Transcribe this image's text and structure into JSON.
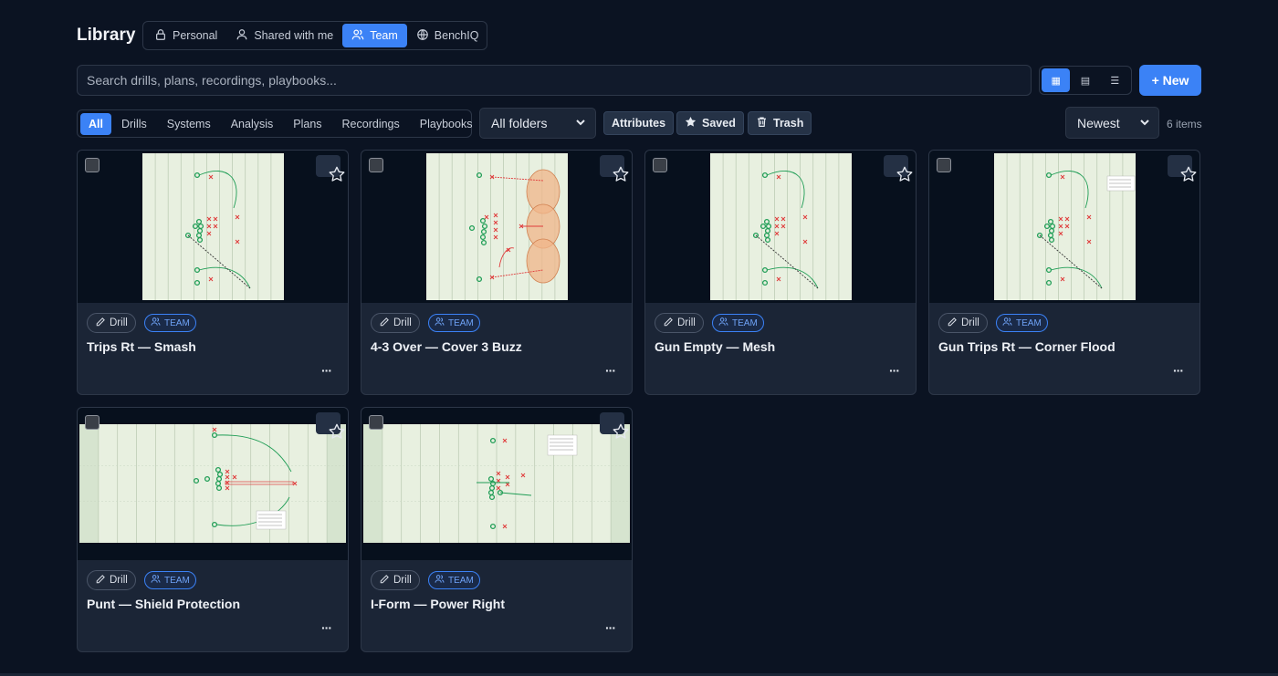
{
  "header": {
    "title": "Library",
    "scope_tabs": [
      {
        "label": "Personal",
        "icon": "lock-icon"
      },
      {
        "label": "Shared with me",
        "icon": "user-icon"
      },
      {
        "label": "Team",
        "icon": "users-icon"
      },
      {
        "label": "BenchIQ",
        "icon": "globe-icon"
      }
    ],
    "active_scope": "Team"
  },
  "search": {
    "placeholder": "Search drills, plans, recordings, playbooks...",
    "value": ""
  },
  "view_modes": [
    {
      "name": "grid",
      "glyph": "▦"
    },
    {
      "name": "compact",
      "glyph": "▤"
    },
    {
      "name": "list",
      "glyph": "☰"
    }
  ],
  "new_button": {
    "label": "+ New"
  },
  "type_tabs": [
    "All",
    "Drills",
    "Systems",
    "Analysis",
    "Plans",
    "Recordings",
    "Playbooks"
  ],
  "active_type": "All",
  "folder_filter": {
    "value": "All folders"
  },
  "filter_buttons": {
    "attributes": "Attributes",
    "saved": "Saved",
    "trash": "Trash"
  },
  "sort": {
    "value": "Newest"
  },
  "item_count": "6 items",
  "cards": [
    {
      "title": "Trips Rt — Smash",
      "type": "Drill",
      "scope": "TEAM"
    },
    {
      "title": "4-3 Over — Cover 3 Buzz",
      "type": "Drill",
      "scope": "TEAM"
    },
    {
      "title": "Gun Empty — Mesh",
      "type": "Drill",
      "scope": "TEAM"
    },
    {
      "title": "Gun Trips Rt — Corner Flood",
      "type": "Drill",
      "scope": "TEAM"
    },
    {
      "title": "Punt — Shield Protection",
      "type": "Drill",
      "scope": "TEAM"
    },
    {
      "title": "I-Form — Power Right",
      "type": "Drill",
      "scope": "TEAM"
    }
  ],
  "menu_glyph": "···",
  "colors": {
    "accent": "#3b82f6",
    "background": "#0b1322",
    "card": "#1b2536",
    "offense": "#1f9d55",
    "defense": "#e03b3b",
    "field": "#e8f0e0"
  }
}
